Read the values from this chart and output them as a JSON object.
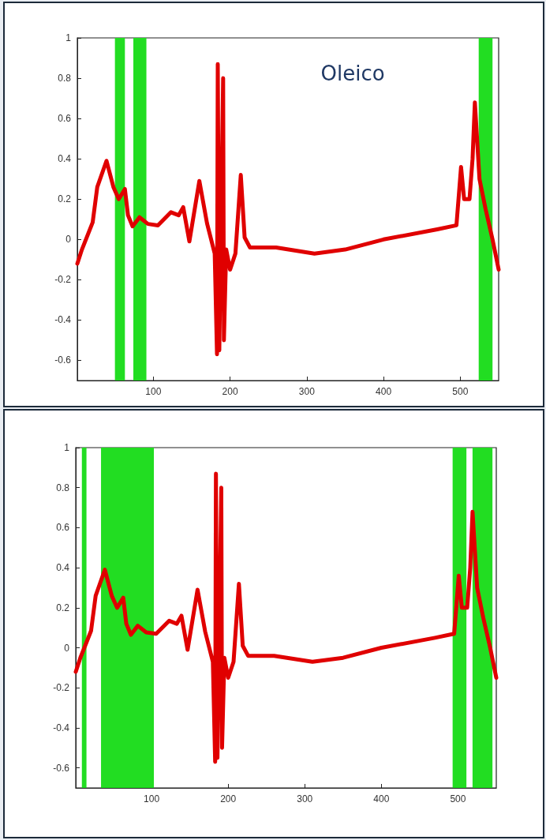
{
  "chart_data": [
    {
      "type": "line",
      "title": "Oleico",
      "xlim": [
        1,
        550
      ],
      "ylim": [
        -0.7,
        1
      ],
      "xticks": [
        100,
        200,
        300,
        400,
        500
      ],
      "yticks": [
        -0.6,
        -0.4,
        -0.2,
        0,
        0.2,
        0.4,
        0.6,
        0.8,
        1
      ],
      "grid": false,
      "marker": "none",
      "line_style": "solid",
      "x": [
        1,
        7,
        21,
        27,
        39,
        48,
        55,
        63,
        67,
        73,
        82,
        93,
        106,
        123,
        133,
        139,
        147,
        160,
        170,
        180,
        183,
        184,
        186,
        191,
        192,
        195,
        200,
        207,
        214,
        219,
        226,
        260,
        310,
        350,
        400,
        470,
        495,
        501,
        505,
        512,
        516,
        519,
        525,
        533,
        542,
        550
      ],
      "series": [
        {
          "color": "#e00000",
          "values": [
            -0.12,
            -0.05,
            0.085,
            0.26,
            0.39,
            0.26,
            0.2,
            0.25,
            0.12,
            0.065,
            0.11,
            0.077,
            0.07,
            0.135,
            0.12,
            0.16,
            -0.01,
            0.29,
            0.08,
            -0.07,
            -0.57,
            0.87,
            -0.55,
            0.8,
            -0.5,
            -0.05,
            -0.15,
            -0.07,
            0.32,
            0.01,
            -0.04,
            -0.04,
            -0.07,
            -0.05,
            0,
            0.05,
            0.07,
            0.36,
            0.2,
            0.2,
            0.4,
            0.68,
            0.3,
            0.15,
            0,
            -0.15
          ]
        }
      ],
      "bands": [
        {
          "axis": "x",
          "from": 50,
          "to": 63,
          "color": "#22dd22"
        },
        {
          "axis": "x",
          "from": 74,
          "to": 91,
          "color": "#22dd22"
        },
        {
          "axis": "x",
          "from": 524,
          "to": 542,
          "color": "#22dd22"
        }
      ]
    },
    {
      "type": "line",
      "xlim": [
        1,
        550
      ],
      "ylim": [
        -0.7,
        1
      ],
      "xticks": [
        100,
        200,
        300,
        400,
        500
      ],
      "yticks": [
        -0.6,
        -0.4,
        -0.2,
        0,
        0.2,
        0.4,
        0.6,
        0.8,
        1
      ],
      "grid": false,
      "marker": "none",
      "line_style": "solid",
      "x": [
        1,
        7,
        21,
        27,
        39,
        48,
        55,
        63,
        67,
        73,
        82,
        93,
        106,
        123,
        133,
        139,
        147,
        160,
        170,
        180,
        183,
        184,
        186,
        191,
        192,
        195,
        200,
        207,
        214,
        219,
        226,
        260,
        310,
        350,
        400,
        470,
        495,
        501,
        505,
        512,
        516,
        519,
        525,
        533,
        542,
        550
      ],
      "series": [
        {
          "color": "#e00000",
          "values": [
            -0.12,
            -0.05,
            0.085,
            0.26,
            0.39,
            0.26,
            0.2,
            0.25,
            0.12,
            0.065,
            0.11,
            0.077,
            0.07,
            0.135,
            0.12,
            0.16,
            -0.01,
            0.29,
            0.08,
            -0.07,
            -0.57,
            0.87,
            -0.55,
            0.8,
            -0.5,
            -0.05,
            -0.15,
            -0.07,
            0.32,
            0.01,
            -0.04,
            -0.04,
            -0.07,
            -0.05,
            0,
            0.05,
            0.07,
            0.36,
            0.2,
            0.2,
            0.4,
            0.68,
            0.3,
            0.15,
            0,
            -0.15
          ]
        }
      ],
      "bands": [
        {
          "axis": "x",
          "from": 9,
          "to": 15,
          "color": "#22dd22"
        },
        {
          "axis": "x",
          "from": 34,
          "to": 103,
          "color": "#22dd22"
        },
        {
          "axis": "x",
          "from": 493,
          "to": 511,
          "color": "#22dd22"
        },
        {
          "axis": "x",
          "from": 519,
          "to": 545,
          "color": "#22dd22"
        }
      ]
    }
  ]
}
